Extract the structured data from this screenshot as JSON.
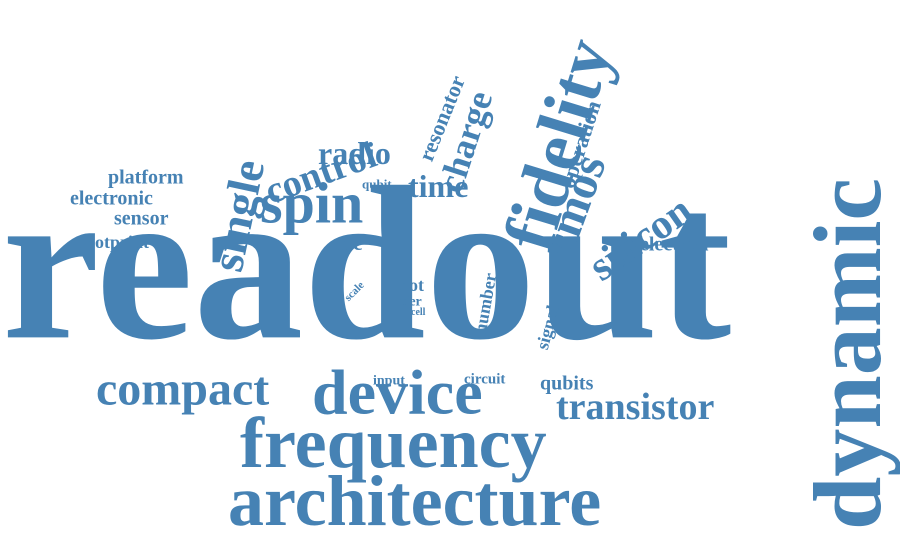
{
  "cloud": {
    "color": "#4682b4",
    "words": [
      {
        "id": "readout",
        "text": "readout"
      },
      {
        "id": "dynamic",
        "text": "dynamic"
      },
      {
        "id": "architecture",
        "text": "architecture"
      },
      {
        "id": "frequency",
        "text": "frequency"
      },
      {
        "id": "device",
        "text": "device"
      },
      {
        "id": "fidelity",
        "text": "fidelity"
      },
      {
        "id": "compact",
        "text": "compact"
      },
      {
        "id": "transistor",
        "text": "transistor"
      },
      {
        "id": "spin",
        "text": "spin"
      },
      {
        "id": "silicon",
        "text": "silicon"
      },
      {
        "id": "cmos",
        "text": "cmos"
      },
      {
        "id": "single",
        "text": "single"
      },
      {
        "id": "control",
        "text": "control"
      },
      {
        "id": "charge",
        "text": "charge"
      },
      {
        "id": "radio",
        "text": "radio"
      },
      {
        "id": "time",
        "text": "time"
      },
      {
        "id": "operation",
        "text": "operation"
      },
      {
        "id": "resonator",
        "text": "resonator"
      },
      {
        "id": "electron",
        "text": "electron"
      },
      {
        "id": "platform",
        "text": "platform"
      },
      {
        "id": "electronic",
        "text": "electronic"
      },
      {
        "id": "sensor",
        "text": "sensor"
      },
      {
        "id": "footprint",
        "text": "footprint"
      },
      {
        "id": "acc",
        "text": "acc"
      },
      {
        "id": "qubit",
        "text": "qubit"
      },
      {
        "id": "qubits",
        "text": "qubits"
      },
      {
        "id": "number",
        "text": "number"
      },
      {
        "id": "signal",
        "text": "signal"
      },
      {
        "id": "dot",
        "text": "dot"
      },
      {
        "id": "offer",
        "text": "offer"
      },
      {
        "id": "cell",
        "text": "cell"
      },
      {
        "id": "scale",
        "text": "scale"
      },
      {
        "id": "input",
        "text": "input"
      },
      {
        "id": "circuit",
        "text": "circuit"
      }
    ]
  }
}
